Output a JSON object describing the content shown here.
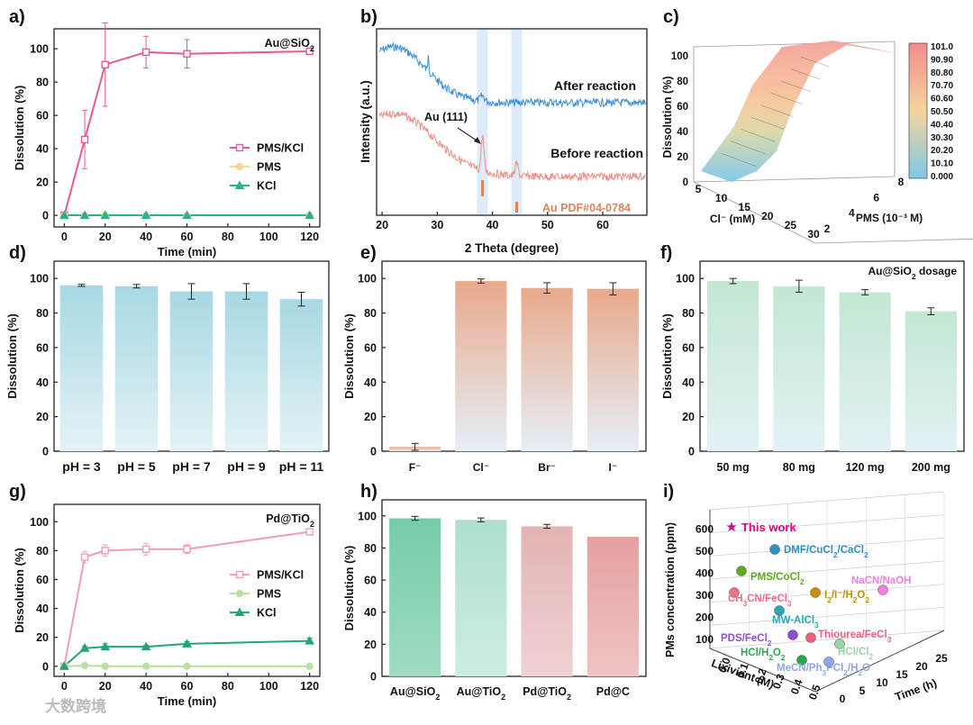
{
  "figure": {
    "watermark": "大数跨境"
  },
  "chart_data": [
    {
      "id": "a",
      "panel_label": "a)",
      "type": "line",
      "inset_title": "Au@SiO2",
      "xlabel": "Time (min)",
      "ylabel": "Dissolution (%)",
      "xlim": [
        -5,
        125
      ],
      "ylim": [
        -7,
        112
      ],
      "xticks": [
        0,
        20,
        40,
        60,
        80,
        100,
        120
      ],
      "yticks": [
        0,
        20,
        40,
        60,
        80,
        100
      ],
      "legend": "center-right",
      "series": [
        {
          "name": "PMS/KCl",
          "color": "#e65a96",
          "marker": "square",
          "x": [
            0,
            10,
            20,
            40,
            60,
            120
          ],
          "y": [
            0,
            45.5,
            90.5,
            98,
            97,
            98.5
          ],
          "err": [
            0,
            17.5,
            25,
            9.5,
            8.5,
            0.5
          ]
        },
        {
          "name": "PMS",
          "color": "#f2d79a",
          "marker": "circle",
          "x": [
            0,
            10,
            20,
            40,
            60,
            120
          ],
          "y": [
            0,
            0,
            0,
            0,
            0,
            0
          ]
        },
        {
          "name": "KCl",
          "color": "#2db386",
          "marker": "triangle",
          "x": [
            0,
            10,
            20,
            40,
            60,
            120
          ],
          "y": [
            0,
            0,
            0,
            0,
            0,
            0
          ]
        }
      ]
    },
    {
      "id": "b",
      "panel_label": "b)",
      "type": "line",
      "xlabel": "2 Theta (degree)",
      "ylabel": "Intensity (a.u.)",
      "xlim": [
        19,
        68
      ],
      "xticks": [
        20,
        30,
        40,
        50,
        60
      ],
      "series": [
        {
          "name": "After reaction",
          "color": "#3d8fdb"
        },
        {
          "name": "Before reaction",
          "color": "#f08f8a"
        }
      ],
      "annotations": {
        "peak": "Au (111)",
        "reference": "Au PDF#04-0784"
      },
      "reference_peaks": [
        38.2,
        44.4
      ]
    },
    {
      "id": "c",
      "panel_label": "c)",
      "type": "surface",
      "xlabel": "Cl⁻ (mM)",
      "ylabel": "PMS (10⁻³ M)",
      "zlabel": "Dissolution (%)",
      "x_ticks": [
        5,
        10,
        15,
        20,
        25,
        30
      ],
      "y_ticks": [
        2,
        4,
        6,
        8
      ],
      "z_ticks": [
        0,
        20,
        40,
        60,
        80,
        100
      ],
      "colorbar": [
        "101.0",
        "90.90",
        "80.80",
        "70.70",
        "60.60",
        "50.50",
        "40.40",
        "30.30",
        "20.20",
        "10.10",
        "0.000"
      ]
    },
    {
      "id": "d",
      "panel_label": "d)",
      "type": "bar",
      "categories": [
        "pH = 3",
        "pH = 5",
        "pH = 7",
        "pH = 9",
        "pH = 11"
      ],
      "values": [
        96,
        95.5,
        92.5,
        92.5,
        88
      ],
      "errors": [
        0.6,
        1,
        4.5,
        4.5,
        4
      ],
      "ylabel": "Dissolution (%)",
      "ylim": [
        0,
        110
      ],
      "yticks": [
        0,
        20,
        40,
        60,
        80,
        100
      ],
      "colors": [
        "#a9dbe5"
      ]
    },
    {
      "id": "e",
      "panel_label": "e)",
      "type": "bar",
      "categories": [
        "F⁻",
        "Cl⁻",
        "Br⁻",
        "I⁻"
      ],
      "values": [
        2.5,
        98.5,
        94.5,
        94
      ],
      "errors": [
        2,
        1.2,
        3,
        3.5
      ],
      "ylabel": "Dissolution (%)",
      "ylim": [
        0,
        110
      ],
      "yticks": [
        0,
        20,
        40,
        60,
        80,
        100
      ],
      "colors": [
        "#edb59a"
      ]
    },
    {
      "id": "f",
      "panel_label": "f)",
      "type": "bar",
      "inset_title": "Au@SiO2 dosage",
      "categories": [
        "50 mg",
        "80 mg",
        "120 mg",
        "200 mg"
      ],
      "values": [
        98.5,
        95.5,
        92,
        81
      ],
      "errors": [
        1.5,
        3.5,
        1.5,
        2
      ],
      "ylabel": "Dissolution (%)",
      "ylim": [
        0,
        110
      ],
      "yticks": [
        0,
        20,
        40,
        60,
        80,
        100
      ],
      "colors": [
        "#c4e8d4"
      ]
    },
    {
      "id": "g",
      "panel_label": "g)",
      "type": "line",
      "inset_title": "Pd@TiO2",
      "xlabel": "Time (min)",
      "ylabel": "Dissolution (%)",
      "xlim": [
        -5,
        125
      ],
      "ylim": [
        -7,
        112
      ],
      "xticks": [
        0,
        20,
        40,
        60,
        80,
        100,
        120
      ],
      "yticks": [
        0,
        20,
        40,
        60,
        80,
        100
      ],
      "legend": "center-right",
      "series": [
        {
          "name": "PMS/KCl",
          "color": "#f39bbb",
          "marker": "square",
          "x": [
            0,
            10,
            20,
            40,
            60,
            120
          ],
          "y": [
            0,
            75.5,
            80,
            81,
            81,
            93
          ],
          "err": [
            0,
            4,
            4,
            4,
            3,
            1
          ]
        },
        {
          "name": "PMS",
          "color": "#b9dfa1",
          "marker": "circle",
          "x": [
            0,
            10,
            20,
            40,
            60,
            120
          ],
          "y": [
            0,
            0.5,
            0,
            0,
            0,
            0
          ]
        },
        {
          "name": "KCl",
          "color": "#1fa57a",
          "marker": "triangle",
          "x": [
            0,
            10,
            20,
            40,
            60,
            120
          ],
          "y": [
            0,
            12.5,
            13.5,
            13.5,
            15.5,
            17.5
          ],
          "err": [
            0,
            1.5,
            2,
            1,
            1.5,
            2
          ]
        }
      ]
    },
    {
      "id": "h",
      "panel_label": "h)",
      "type": "bar",
      "categories": [
        "Au@SiO2",
        "Au@TiO2",
        "Pd@TiO2",
        "Pd@C"
      ],
      "values": [
        98.5,
        97.5,
        93.5,
        87
      ],
      "errors": [
        1.2,
        1.2,
        1.2,
        0
      ],
      "ylabel": "Dissolution (%)",
      "ylim": [
        0,
        110
      ],
      "yticks": [
        0,
        20,
        40,
        60,
        80,
        100
      ],
      "colors": [
        "#7fd0ad",
        "#b6e3d2",
        "#e7bdbd",
        "#e8a8a8"
      ]
    },
    {
      "id": "i",
      "panel_label": "i)",
      "type": "scatter3d",
      "xlabel": "Lixiviant (M)",
      "ylabel": "Time (h)",
      "zlabel": "PMs concentration (ppm)",
      "x_ticks": [
        "0.0",
        "0.1",
        "0.2",
        "0.3",
        "0.4",
        "0.5"
      ],
      "y_ticks": [
        0,
        5,
        10,
        15,
        20,
        25
      ],
      "z_ticks": [
        100,
        200,
        300,
        400,
        500,
        600
      ],
      "legend_label": "This work",
      "points": [
        {
          "label": "DMF/CuCl2/CaCl2",
          "color": "#2f8fc7"
        },
        {
          "label": "PMS/CoCl2",
          "color": "#5aaa22"
        },
        {
          "label": "NaCN/NaOH",
          "color": "#f07fe0"
        },
        {
          "label": "I2/I⁻/H2O2",
          "color": "#c88f00"
        },
        {
          "label": "CH3CN/FeCl3",
          "color": "#ef6f8a"
        },
        {
          "label": "MW-AlCl3",
          "color": "#2aa8b5"
        },
        {
          "label": "PDS/FeCl2",
          "color": "#8d4fd1"
        },
        {
          "label": "Thiourea/FeCl3",
          "color": "#ee5f7f"
        },
        {
          "label": "HCl/Cl2",
          "color": "#9bd3a3"
        },
        {
          "label": "HCl/H2O2",
          "color": "#2ea650"
        },
        {
          "label": "MeCN/Ph3PCl2/H2O",
          "color": "#8ea6e8"
        }
      ]
    }
  ]
}
